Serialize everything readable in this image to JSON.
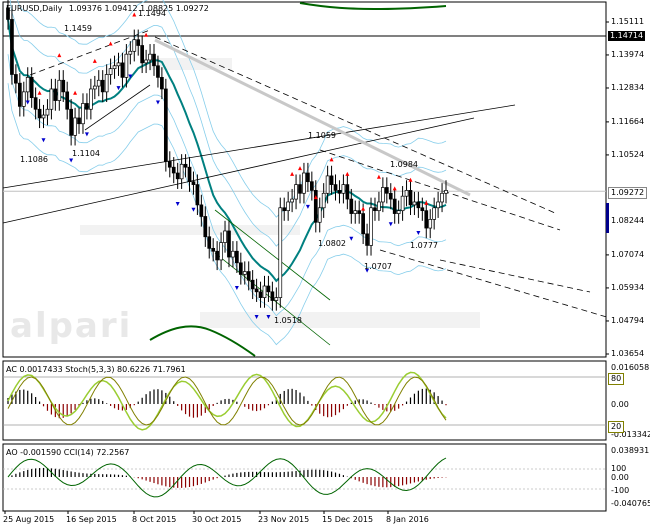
{
  "header": {
    "symbol": "EURUSD,Daily",
    "ohlc": "1.09376 1.09412 1.08825 1.09272"
  },
  "watermark": "alpari",
  "price_axis": [
    "1.15111",
    "1.13974",
    "1.12834",
    "1.11664",
    "1.10524",
    "1.09272",
    "1.08244",
    "1.07074",
    "1.05934",
    "1.04794",
    "1.03654"
  ],
  "price_tags": {
    "upper_line": "1.14714",
    "current": "1.09272"
  },
  "annotations": [
    "1.1459",
    "1.1494",
    "1.1086",
    "1.1104",
    "1.1059",
    "1.0984",
    "1.0802",
    "1.0707",
    "1.0777",
    "1.0518"
  ],
  "indicator1": {
    "header": "AC 0.0017433  Stoch(5,3,3) 80.6226 71.7961",
    "axis": [
      "0.016058",
      "0.00",
      "-0.013342"
    ],
    "levels": [
      "80",
      "20"
    ]
  },
  "indicator2": {
    "header": "AO -0.001590  CCI(14) 72.2567",
    "axis": [
      "0.038931",
      "100",
      "0.00",
      "-100",
      "-0.040765"
    ]
  },
  "dates": [
    "25 Aug 2015",
    "16 Sep 2015",
    "8 Oct 2015",
    "30 Oct 2015",
    "23 Nov 2015",
    "15 Dec 2015",
    "8 Jan 2016"
  ],
  "colors": {
    "bull_candle": "#000000",
    "bear_candle": "#000000",
    "ma": "#008080",
    "envelope": "#87ceeb",
    "bands_outer": "#006400",
    "fractal_up": "#ff0000",
    "fractal_down": "#0000cd",
    "stoch": "#9acd32",
    "ac_bar": "#8b0000",
    "cci": "#006400",
    "tag_bg_dark": "#000000",
    "tag_bg_white": "#ffffff"
  },
  "chart_data": {
    "type": "candlestick",
    "symbol": "EURUSD",
    "timeframe": "Daily",
    "title": "",
    "ylim": [
      1.03654,
      1.15111
    ],
    "x_tick_labels": [
      "25 Aug 2015",
      "16 Sep 2015",
      "8 Oct 2015",
      "30 Oct 2015",
      "23 Nov 2015",
      "15 Dec 2015",
      "8 Jan 2016"
    ],
    "y_tick_labels": [
      "1.15111",
      "1.13974",
      "1.12834",
      "1.11664",
      "1.10524",
      "1.09272",
      "1.08244",
      "1.07074",
      "1.05934",
      "1.04794",
      "1.03654"
    ],
    "last_ohlc": [
      1.09376,
      1.09412,
      1.08825,
      1.09272
    ],
    "close_series": [
      1.152,
      1.133,
      1.13,
      1.122,
      1.127,
      1.132,
      1.125,
      1.121,
      1.118,
      1.119,
      1.121,
      1.128,
      1.124,
      1.131,
      1.127,
      1.121,
      1.112,
      1.118,
      1.116,
      1.123,
      1.121,
      1.128,
      1.129,
      1.131,
      1.127,
      1.133,
      1.135,
      1.136,
      1.137,
      1.132,
      1.14,
      1.141,
      1.145,
      1.143,
      1.137,
      1.138,
      1.14,
      1.136,
      1.132,
      1.128,
      1.103,
      1.101,
      1.099,
      1.097,
      1.102,
      1.101,
      1.096,
      1.095,
      1.088,
      1.084,
      1.077,
      1.073,
      1.072,
      1.069,
      1.075,
      1.079,
      1.07,
      1.072,
      1.068,
      1.064,
      1.065,
      1.062,
      1.059,
      1.058,
      1.056,
      1.06,
      1.058,
      1.055,
      1.056,
      1.087,
      1.086,
      1.089,
      1.09,
      1.095,
      1.092,
      1.099,
      1.096,
      1.093,
      1.082,
      1.087,
      1.092,
      1.098,
      1.095,
      1.093,
      1.092,
      1.095,
      1.09,
      1.085,
      1.086,
      1.085,
      1.078,
      1.074,
      1.087,
      1.086,
      1.089,
      1.094,
      1.092,
      1.09,
      1.085,
      1.086,
      1.091,
      1.093,
      1.088,
      1.089,
      1.087,
      1.086,
      1.08,
      1.083,
      1.087,
      1.089,
      1.092,
      1.093
    ],
    "fractal_highs": [
      1.1459,
      1.1494,
      1.1059,
      1.0984
    ],
    "fractal_lows": [
      1.1086,
      1.1104,
      1.0802,
      1.0707,
      1.0777,
      1.0518
    ],
    "indicators": [
      {
        "name": "AC",
        "value": 0.0017433
      },
      {
        "name": "Stoch(5,3,3)",
        "values": [
          80.6226,
          71.7961
        ],
        "levels": [
          80,
          20
        ]
      },
      {
        "name": "AO",
        "value": -0.00159
      },
      {
        "name": "CCI(14)",
        "value": 72.2567,
        "levels": [
          100,
          -100
        ]
      }
    ]
  }
}
